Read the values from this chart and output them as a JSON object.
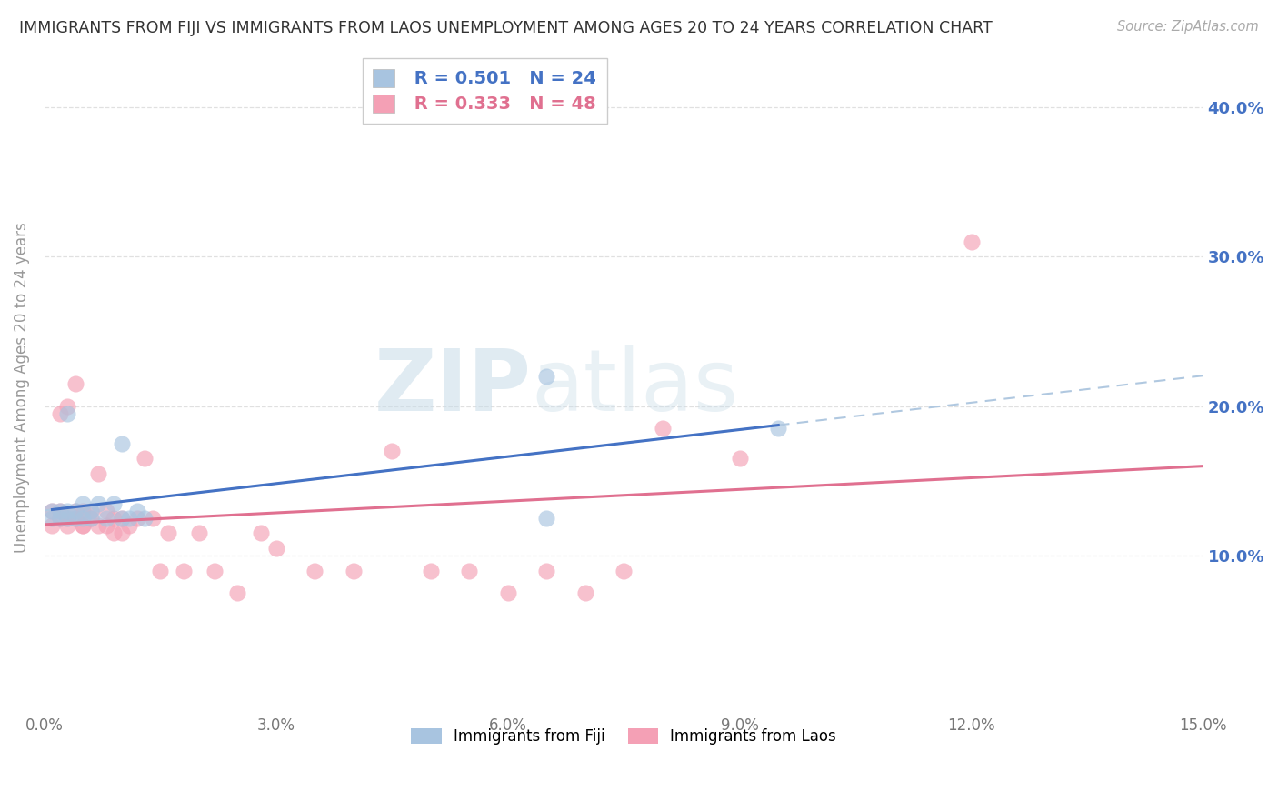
{
  "title": "IMMIGRANTS FROM FIJI VS IMMIGRANTS FROM LAOS UNEMPLOYMENT AMONG AGES 20 TO 24 YEARS CORRELATION CHART",
  "source": "Source: ZipAtlas.com",
  "ylabel": "Unemployment Among Ages 20 to 24 years",
  "xlim": [
    0.0,
    0.15
  ],
  "ylim": [
    -0.005,
    0.43
  ],
  "xticks": [
    0.0,
    0.03,
    0.06,
    0.09,
    0.12,
    0.15
  ],
  "yticks": [
    0.1,
    0.2,
    0.3,
    0.4
  ],
  "xticklabels": [
    "0.0%",
    "3.0%",
    "6.0%",
    "9.0%",
    "12.0%",
    "15.0%"
  ],
  "yticklabels": [
    "10.0%",
    "20.0%",
    "30.0%",
    "40.0%"
  ],
  "fiji_R": 0.501,
  "fiji_N": 24,
  "laos_R": 0.333,
  "laos_N": 48,
  "fiji_color": "#a8c4e0",
  "laos_color": "#f4a0b5",
  "fiji_line_color": "#4472C4",
  "laos_line_color": "#E07090",
  "fiji_dashed_color": "#b0c8e0",
  "fiji_x": [
    0.001,
    0.001,
    0.002,
    0.002,
    0.003,
    0.003,
    0.003,
    0.004,
    0.004,
    0.005,
    0.005,
    0.006,
    0.006,
    0.007,
    0.008,
    0.009,
    0.01,
    0.01,
    0.011,
    0.012,
    0.013,
    0.065,
    0.065,
    0.095
  ],
  "fiji_y": [
    0.125,
    0.13,
    0.13,
    0.125,
    0.13,
    0.195,
    0.125,
    0.125,
    0.13,
    0.135,
    0.125,
    0.13,
    0.125,
    0.135,
    0.125,
    0.135,
    0.125,
    0.175,
    0.125,
    0.13,
    0.125,
    0.22,
    0.125,
    0.185
  ],
  "laos_x": [
    0.001,
    0.001,
    0.002,
    0.002,
    0.002,
    0.003,
    0.003,
    0.003,
    0.004,
    0.004,
    0.004,
    0.005,
    0.005,
    0.005,
    0.006,
    0.006,
    0.007,
    0.007,
    0.008,
    0.008,
    0.009,
    0.009,
    0.01,
    0.01,
    0.011,
    0.012,
    0.013,
    0.014,
    0.015,
    0.016,
    0.018,
    0.02,
    0.022,
    0.025,
    0.028,
    0.03,
    0.035,
    0.04,
    0.045,
    0.05,
    0.055,
    0.06,
    0.065,
    0.07,
    0.075,
    0.08,
    0.09,
    0.12
  ],
  "laos_y": [
    0.12,
    0.13,
    0.125,
    0.13,
    0.195,
    0.125,
    0.12,
    0.2,
    0.125,
    0.13,
    0.215,
    0.12,
    0.13,
    0.12,
    0.13,
    0.125,
    0.12,
    0.155,
    0.12,
    0.13,
    0.125,
    0.115,
    0.125,
    0.115,
    0.12,
    0.125,
    0.165,
    0.125,
    0.09,
    0.115,
    0.09,
    0.115,
    0.09,
    0.075,
    0.115,
    0.105,
    0.09,
    0.09,
    0.17,
    0.09,
    0.09,
    0.075,
    0.09,
    0.075,
    0.09,
    0.185,
    0.165,
    0.31
  ],
  "watermark_zip": "ZIP",
  "watermark_atlas": "atlas",
  "background_color": "#ffffff",
  "grid_color": "#e0e0e0"
}
